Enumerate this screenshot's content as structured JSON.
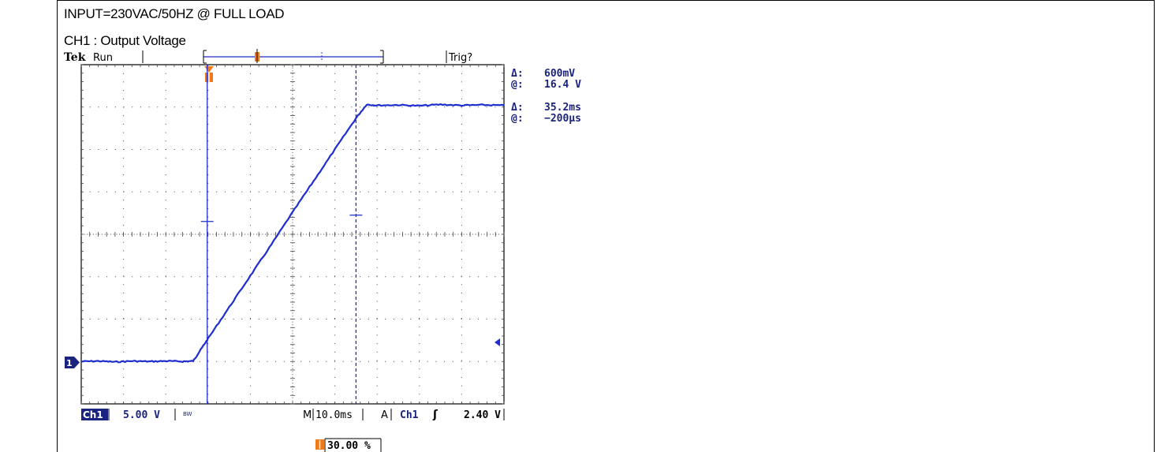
{
  "caption": {
    "line1": "INPUT=230VAC/50HZ @ FULL LOAD",
    "line2": "CH1 : Output Voltage"
  },
  "scope": {
    "brand": "Tek",
    "run_state": "Run",
    "trigger_status": "Trig?",
    "ch1_label": "Ch1",
    "ch1_scale": "5.00 V",
    "bw_label": "BW",
    "timebase_prefix": "M",
    "timebase": "10.0ms",
    "acq_label": "A",
    "trig_source": "Ch1",
    "trig_slope_symbol": "ʃ",
    "trig_level": "2.40 V",
    "trig_position": "30.00 %",
    "marker_1": "1",
    "trace_color": "#1f2ecc",
    "text_color": "#1a237e",
    "trigger_color": "#ee7a1a"
  },
  "cursors": {
    "delta_v_label": "Δ:",
    "delta_v": "600mV",
    "at_v_label": "@:",
    "at_v": "16.4 V",
    "delta_t_label": "Δ:",
    "delta_t": "35.2ms",
    "at_t_label": "@:",
    "at_t": "−200µs"
  },
  "chart_data": {
    "type": "line",
    "title": "CH1 : Output Voltage",
    "x_unit": "ms",
    "y_unit": "V",
    "xlim": [
      -30,
      70
    ],
    "ylim": [
      -5,
      35
    ],
    "divisions": {
      "x": 10,
      "y": 8
    },
    "series": [
      {
        "x": [
          -30,
          -26,
          -22,
          -18,
          -14,
          -10,
          -6,
          -3.5,
          -2,
          0,
          5,
          10,
          15,
          20,
          25,
          30,
          35,
          37.5,
          40,
          45,
          50,
          55,
          60,
          65,
          70
        ],
        "y": [
          0,
          0.05,
          -0.05,
          0.05,
          0,
          0.05,
          0,
          0.05,
          1.2,
          2.7,
          6.4,
          10.1,
          13.8,
          17.6,
          21.3,
          25.0,
          28.7,
          30.3,
          30.2,
          30.25,
          30.15,
          30.3,
          30.2,
          30.25,
          30.2
        ]
      }
    ],
    "cursor_time_ms": [
      -0.2,
      35.0
    ],
    "cursor_volt_v": [
      16.1,
      16.7
    ]
  }
}
